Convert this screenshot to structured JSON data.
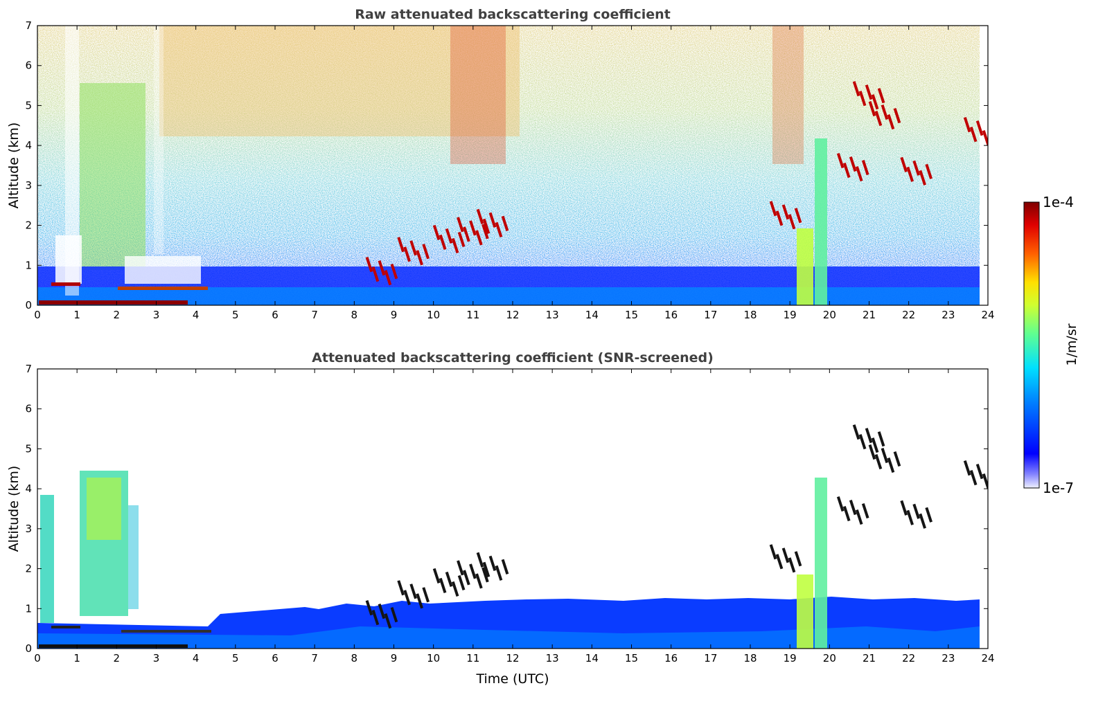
{
  "chart_data": [
    {
      "type": "heatmap",
      "title": "Raw attenuated backscattering coefficient",
      "xlabel": "",
      "ylabel": "Altitude (km)",
      "x_ticks": [
        "0",
        "1",
        "2",
        "3",
        "4",
        "5",
        "6",
        "7",
        "8",
        "9",
        "10",
        "11",
        "12",
        "13",
        "14",
        "15",
        "16",
        "17",
        "18",
        "19",
        "20",
        "21",
        "22",
        "23",
        "24"
      ],
      "y_ticks": [
        "0",
        "1",
        "2",
        "3",
        "4",
        "5",
        "6",
        "7"
      ],
      "xlim": [
        0,
        24
      ],
      "ylim": [
        0,
        7
      ],
      "features": {
        "clear_sky_columns_utc": [
          [
            0.7,
            1.05
          ],
          [
            2.95,
            3.15
          ]
        ],
        "low_aerosol_layer_top_km": 0.6,
        "surface_layer_km": [
          0.0,
          0.08
        ],
        "elevated_layer_early_km": 0.5,
        "precip_fallstreak_utc": [
          [
            19.15,
            19.55
          ],
          [
            19.65,
            19.95
          ]
        ],
        "cirrus_patches": [
          {
            "t": 8.6,
            "z": 1.0
          },
          {
            "t": 9.4,
            "z": 1.5
          },
          {
            "t": 10.3,
            "z": 1.8
          },
          {
            "t": 10.9,
            "z": 2.0
          },
          {
            "t": 11.4,
            "z": 2.2
          },
          {
            "t": 18.8,
            "z": 2.4
          },
          {
            "t": 20.5,
            "z": 3.6
          },
          {
            "t": 20.9,
            "z": 5.4
          },
          {
            "t": 21.3,
            "z": 4.9
          },
          {
            "t": 22.1,
            "z": 3.5
          },
          {
            "t": 23.7,
            "z": 4.5
          }
        ]
      }
    },
    {
      "type": "heatmap",
      "title": "Attenuated backscattering coefficient (SNR-screened)",
      "xlabel": "Time (UTC)",
      "ylabel": "Altitude (km)",
      "x_ticks": [
        "0",
        "1",
        "2",
        "3",
        "4",
        "5",
        "6",
        "7",
        "8",
        "9",
        "10",
        "11",
        "12",
        "13",
        "14",
        "15",
        "16",
        "17",
        "18",
        "19",
        "20",
        "21",
        "22",
        "23",
        "24"
      ],
      "y_ticks": [
        "0",
        "1",
        "2",
        "3",
        "4",
        "5",
        "6",
        "7"
      ],
      "xlim": [
        0,
        24
      ],
      "ylim": [
        0,
        7
      ],
      "features": {
        "boundary_layer_top_km": 1.0,
        "aerosol_plume_utc": [
          [
            0.1,
            0.45
          ],
          [
            1.05,
            2.5
          ]
        ],
        "aerosol_plume_top_km": 4.4,
        "precip_fallstreak_utc": [
          [
            19.15,
            19.55
          ],
          [
            19.65,
            19.95
          ]
        ]
      }
    }
  ],
  "colorbar": {
    "label": "1/m/sr",
    "max_label": "1e-4",
    "min_label": "1e-7",
    "scale": "log",
    "colormap": [
      "#ffffff",
      "#00007f",
      "#0000ff",
      "#0080ff",
      "#00ffff",
      "#80ff80",
      "#ffff00",
      "#ff8000",
      "#ff0000",
      "#7f0000"
    ]
  }
}
